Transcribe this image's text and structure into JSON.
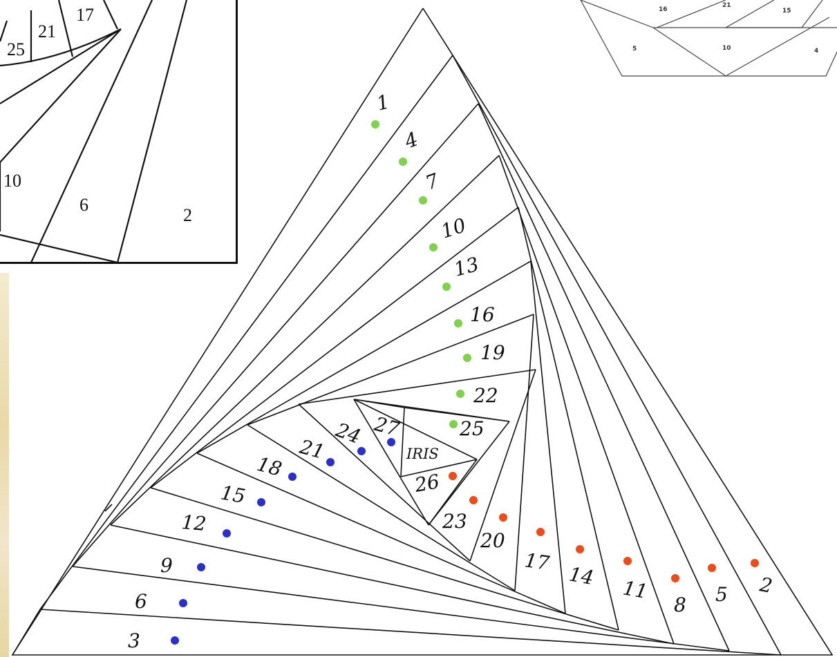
{
  "main_pattern": {
    "center_label": "IRIS",
    "strips": [
      {
        "label": "1",
        "dot_color": "green"
      },
      {
        "label": "2",
        "dot_color": "red"
      },
      {
        "label": "3",
        "dot_color": "blue"
      },
      {
        "label": "4",
        "dot_color": "green"
      },
      {
        "label": "5",
        "dot_color": "red"
      },
      {
        "label": "6",
        "dot_color": "blue"
      },
      {
        "label": "7",
        "dot_color": "green"
      },
      {
        "label": "8",
        "dot_color": "red"
      },
      {
        "label": "9",
        "dot_color": "blue"
      },
      {
        "label": "10",
        "dot_color": "green"
      },
      {
        "label": "11",
        "dot_color": "red"
      },
      {
        "label": "12",
        "dot_color": "blue"
      },
      {
        "label": "13",
        "dot_color": "green"
      },
      {
        "label": "14",
        "dot_color": "red"
      },
      {
        "label": "15",
        "dot_color": "blue"
      },
      {
        "label": "16",
        "dot_color": "green"
      },
      {
        "label": "17",
        "dot_color": "red"
      },
      {
        "label": "18",
        "dot_color": "blue"
      },
      {
        "label": "19",
        "dot_color": "green"
      },
      {
        "label": "20",
        "dot_color": "red"
      },
      {
        "label": "21",
        "dot_color": "blue"
      },
      {
        "label": "22",
        "dot_color": "green"
      },
      {
        "label": "23",
        "dot_color": "red"
      },
      {
        "label": "24",
        "dot_color": "blue"
      },
      {
        "label": "25",
        "dot_color": "green"
      },
      {
        "label": "26",
        "dot_color": "red"
      },
      {
        "label": "27",
        "dot_color": "blue"
      }
    ]
  },
  "colors": {
    "green": "#7fd34a",
    "red": "#f04a16",
    "blue": "#2a2fd0",
    "line": "#111111"
  },
  "left_card": {
    "labels": [
      "17",
      "25",
      "21",
      "10",
      "6",
      "2"
    ]
  },
  "right_card": {
    "labels": [
      "16",
      "21",
      "15",
      "5",
      "10",
      "4"
    ]
  }
}
